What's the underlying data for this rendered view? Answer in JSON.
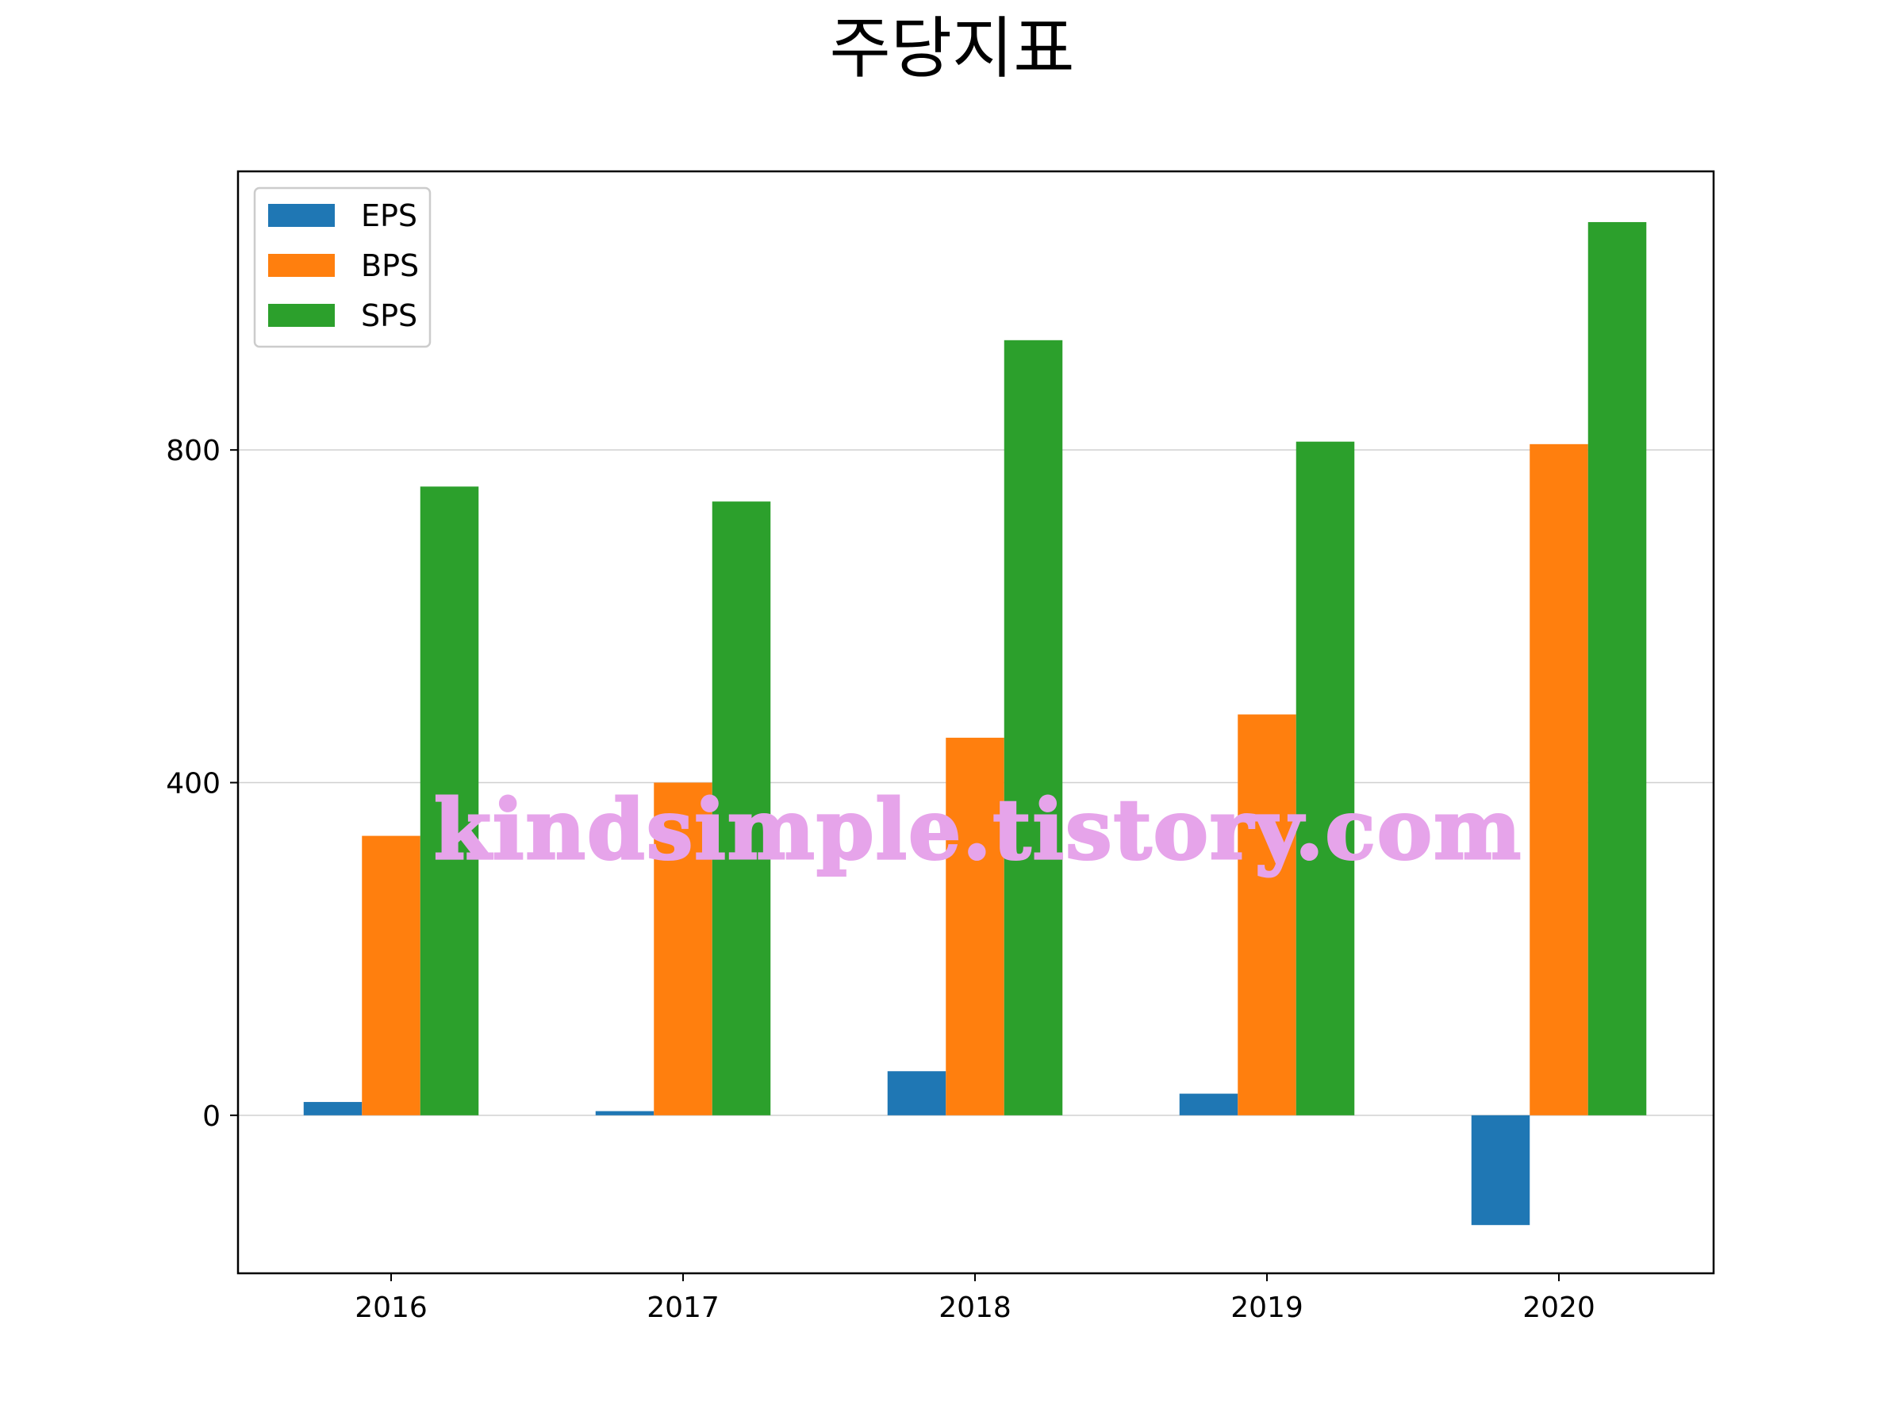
{
  "chart_data": {
    "type": "bar",
    "title": "주당지표",
    "categories": [
      "2016",
      "2017",
      "2018",
      "2019",
      "2020"
    ],
    "series": [
      {
        "name": "EPS",
        "color": "#1f77b4",
        "values": [
          16,
          5,
          53,
          26,
          -132
        ]
      },
      {
        "name": "BPS",
        "color": "#ff7f0e",
        "values": [
          336,
          400,
          454,
          482,
          807
        ]
      },
      {
        "name": "SPS",
        "color": "#2ca02c",
        "values": [
          756,
          738,
          932,
          810,
          1074
        ]
      }
    ],
    "xlabel": "",
    "ylabel": "",
    "ylim": [
      -190,
      1135
    ],
    "yticks": [
      "0",
      "400",
      "800"
    ],
    "ytick_values": [
      0,
      400,
      800
    ],
    "grid": "horizontal",
    "legend_position": "upper-left"
  },
  "watermark": {
    "text": "kindsimple.tistory.com",
    "color": "#e6a4ea"
  }
}
